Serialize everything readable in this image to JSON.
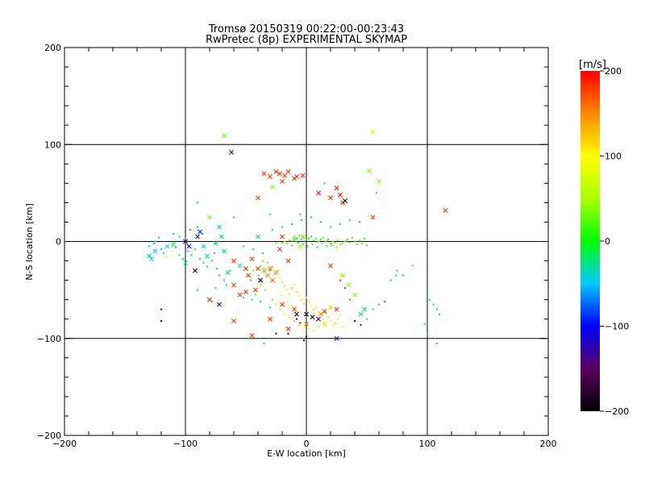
{
  "chart_data": {
    "type": "scatter",
    "title": "Tromsø 20150319 00:22:00-00:23:43",
    "subtitle": "RwPretec (8p) EXPERIMENTAL SKYMAP",
    "xlabel": "E-W location [km]",
    "ylabel": "N-S location [km]",
    "xlim": [
      -200,
      200
    ],
    "ylim": [
      -200,
      200
    ],
    "x_ticks": [
      "-200",
      "-100",
      "0",
      "100",
      "200"
    ],
    "y_ticks": [
      "-200",
      "-100",
      "0",
      "100",
      "200"
    ],
    "grid": true,
    "colorbar": {
      "label": "[m/s]",
      "range": [
        -200,
        200
      ],
      "ticks": [
        "200",
        "100",
        "0",
        "-100",
        "-200"
      ]
    },
    "crosses": [
      [
        -62,
        92,
        -140
      ],
      [
        -68,
        109,
        30
      ],
      [
        -35,
        70,
        180
      ],
      [
        -30,
        67,
        180
      ],
      [
        -25,
        72,
        180
      ],
      [
        -22,
        70,
        180
      ],
      [
        -18,
        68,
        180
      ],
      [
        -15,
        72,
        180
      ],
      [
        -10,
        65,
        180
      ],
      [
        -8,
        67,
        180
      ],
      [
        -3,
        68,
        180
      ],
      [
        -28,
        56,
        40
      ],
      [
        -20,
        62,
        180
      ],
      [
        10,
        50,
        190
      ],
      [
        25,
        55,
        190
      ],
      [
        28,
        48,
        190
      ],
      [
        30,
        40,
        190
      ],
      [
        32,
        42,
        -190
      ],
      [
        20,
        45,
        180
      ],
      [
        55,
        113,
        60
      ],
      [
        52,
        73,
        40
      ],
      [
        60,
        62,
        40
      ],
      [
        55,
        25,
        180
      ],
      [
        115,
        32,
        180
      ],
      [
        -40,
        45,
        180
      ],
      [
        -5,
        -5,
        40
      ],
      [
        -10,
        2,
        20
      ],
      [
        -3,
        5,
        30
      ],
      [
        -130,
        -15,
        -40
      ],
      [
        -125,
        -10,
        -40
      ],
      [
        -128,
        -18,
        -40
      ],
      [
        -115,
        -5,
        -30
      ],
      [
        -110,
        -3,
        -10
      ],
      [
        -100,
        0,
        -120
      ],
      [
        -97,
        -5,
        -110
      ],
      [
        -90,
        5,
        -120
      ],
      [
        -88,
        10,
        -90
      ],
      [
        -85,
        -5,
        -40
      ],
      [
        -82,
        -15,
        -40
      ],
      [
        -75,
        -2,
        -20
      ],
      [
        -72,
        15,
        -20
      ],
      [
        -80,
        25,
        40
      ],
      [
        -70,
        5,
        -30
      ],
      [
        -68,
        -10,
        -30
      ],
      [
        -60,
        -20,
        180
      ],
      [
        -55,
        -25,
        -30
      ],
      [
        -45,
        -18,
        180
      ],
      [
        -40,
        -28,
        180
      ],
      [
        -35,
        -30,
        150
      ],
      [
        -32,
        -35,
        150
      ],
      [
        -30,
        -28,
        160
      ],
      [
        -28,
        -40,
        160
      ],
      [
        -25,
        -32,
        150
      ],
      [
        -38,
        -40,
        -190
      ],
      [
        -42,
        -50,
        180
      ],
      [
        -50,
        -52,
        180
      ],
      [
        -55,
        -55,
        180
      ],
      [
        -60,
        -45,
        180
      ],
      [
        -48,
        -35,
        180
      ],
      [
        -20,
        -65,
        180
      ],
      [
        -10,
        -70,
        180
      ],
      [
        0,
        -75,
        -190
      ],
      [
        5,
        -78,
        -190
      ],
      [
        10,
        -80,
        -160
      ],
      [
        15,
        -72,
        180
      ],
      [
        20,
        -68,
        120
      ],
      [
        25,
        -70,
        180
      ],
      [
        15,
        -85,
        120
      ],
      [
        35,
        -45,
        40
      ],
      [
        40,
        -55,
        40
      ],
      [
        45,
        -75,
        -30
      ],
      [
        48,
        -70,
        -20
      ],
      [
        -15,
        -90,
        180
      ],
      [
        -30,
        -80,
        180
      ],
      [
        -45,
        -97,
        180
      ],
      [
        -60,
        -82,
        180
      ],
      [
        -72,
        -65,
        -120
      ],
      [
        -80,
        -60,
        180
      ],
      [
        -92,
        -30,
        -190
      ],
      [
        -100,
        -22,
        -20
      ],
      [
        25,
        -100,
        -140
      ],
      [
        30,
        -35,
        40
      ],
      [
        20,
        -25,
        180
      ],
      [
        -22,
        -8,
        180
      ],
      [
        -50,
        -28,
        180
      ],
      [
        -65,
        -32,
        -30
      ],
      [
        -8,
        -75,
        -200
      ],
      [
        12,
        -75,
        150
      ],
      [
        0,
        -85,
        150
      ],
      [
        -40,
        5,
        -30
      ],
      [
        -20,
        5,
        180
      ],
      [
        -15,
        -20,
        180
      ]
    ],
    "dots": [
      [
        -10,
        5,
        10
      ],
      [
        -8,
        3,
        0
      ],
      [
        -6,
        6,
        20
      ],
      [
        -4,
        2,
        15
      ],
      [
        -2,
        4,
        10
      ],
      [
        0,
        2,
        5
      ],
      [
        2,
        3,
        0
      ],
      [
        4,
        5,
        20
      ],
      [
        6,
        1,
        10
      ],
      [
        8,
        3,
        25
      ],
      [
        10,
        0,
        30
      ],
      [
        12,
        2,
        15
      ],
      [
        14,
        4,
        20
      ],
      [
        16,
        0,
        10
      ],
      [
        18,
        2,
        5
      ],
      [
        20,
        -2,
        15
      ],
      [
        22,
        0,
        25
      ],
      [
        24,
        -1,
        20
      ],
      [
        26,
        1,
        30
      ],
      [
        28,
        -3,
        35
      ],
      [
        30,
        -2,
        40
      ],
      [
        32,
        0,
        20
      ],
      [
        34,
        2,
        15
      ],
      [
        36,
        -1,
        25
      ],
      [
        38,
        4,
        30
      ],
      [
        40,
        0,
        10
      ],
      [
        42,
        -3,
        20
      ],
      [
        44,
        1,
        30
      ],
      [
        46,
        -2,
        25
      ],
      [
        48,
        3,
        15
      ],
      [
        50,
        -4,
        10
      ],
      [
        -14,
        1,
        20
      ],
      [
        -16,
        -2,
        30
      ],
      [
        -18,
        0,
        40
      ],
      [
        -20,
        -1,
        10
      ],
      [
        -12,
        -4,
        5
      ],
      [
        -7,
        -1,
        0
      ],
      [
        -3,
        -3,
        -10
      ],
      [
        1,
        -5,
        5
      ],
      [
        5,
        -3,
        10
      ],
      [
        9,
        -6,
        -20
      ],
      [
        13,
        -2,
        20
      ],
      [
        17,
        -5,
        30
      ],
      [
        21,
        -4,
        10
      ],
      [
        25,
        -6,
        40
      ],
      [
        -25,
        -2,
        30
      ],
      [
        -36,
        -20,
        40
      ],
      [
        -38,
        -25,
        30
      ],
      [
        -34,
        -28,
        100
      ],
      [
        -32,
        -22,
        120
      ],
      [
        -30,
        -30,
        150
      ],
      [
        -28,
        -26,
        130
      ],
      [
        -26,
        -34,
        110
      ],
      [
        -24,
        -30,
        90
      ],
      [
        -22,
        -38,
        80
      ],
      [
        -20,
        -42,
        70
      ],
      [
        -18,
        -46,
        60
      ],
      [
        -16,
        -50,
        100
      ],
      [
        -14,
        -54,
        110
      ],
      [
        -12,
        -48,
        120
      ],
      [
        -10,
        -44,
        80
      ],
      [
        -8,
        -52,
        60
      ],
      [
        -6,
        -56,
        100
      ],
      [
        -4,
        -60,
        110
      ],
      [
        -2,
        -64,
        120
      ],
      [
        0,
        -58,
        90
      ],
      [
        2,
        -62,
        80
      ],
      [
        4,
        -66,
        100
      ],
      [
        6,
        -70,
        120
      ],
      [
        8,
        -68,
        110
      ],
      [
        10,
        -72,
        90
      ],
      [
        12,
        -76,
        100
      ],
      [
        14,
        -80,
        80
      ],
      [
        16,
        -74,
        60
      ],
      [
        18,
        -78,
        110
      ],
      [
        20,
        -82,
        100
      ],
      [
        22,
        -86,
        90
      ],
      [
        24,
        -84,
        120
      ],
      [
        26,
        -80,
        110
      ],
      [
        28,
        -76,
        100
      ],
      [
        30,
        -88,
        80
      ],
      [
        -28,
        -60,
        40
      ],
      [
        -25,
        -65,
        50
      ],
      [
        -22,
        -70,
        60
      ],
      [
        -18,
        -75,
        90
      ],
      [
        -14,
        -78,
        100
      ],
      [
        -10,
        -82,
        120
      ],
      [
        -6,
        -86,
        110
      ],
      [
        -2,
        -88,
        100
      ],
      [
        2,
        -90,
        90
      ],
      [
        6,
        -92,
        80
      ],
      [
        10,
        -88,
        70
      ],
      [
        -34,
        -50,
        40
      ],
      [
        -38,
        -45,
        30
      ],
      [
        -40,
        -35,
        20
      ],
      [
        -44,
        -30,
        30
      ],
      [
        -46,
        -40,
        -20
      ],
      [
        -42,
        -55,
        30
      ],
      [
        -20,
        -55,
        90
      ],
      [
        -16,
        -62,
        100
      ],
      [
        -12,
        -66,
        80
      ],
      [
        -8,
        -72,
        90
      ],
      [
        -130,
        -5,
        -20
      ],
      [
        -125,
        0,
        -30
      ],
      [
        -120,
        -8,
        -40
      ],
      [
        -118,
        -12,
        -20
      ],
      [
        -115,
        -16,
        90
      ],
      [
        -112,
        -10,
        100
      ],
      [
        -108,
        -6,
        -40
      ],
      [
        -105,
        -14,
        -10
      ],
      [
        -102,
        -18,
        -30
      ],
      [
        -98,
        -10,
        -20
      ],
      [
        -95,
        -14,
        -40
      ],
      [
        -92,
        -8,
        -30
      ],
      [
        -88,
        -18,
        -20
      ],
      [
        -85,
        -22,
        -40
      ],
      [
        -82,
        -26,
        -30
      ],
      [
        -78,
        -20,
        -10
      ],
      [
        -76,
        -12,
        -20
      ],
      [
        -74,
        -28,
        -40
      ],
      [
        -72,
        -35,
        -30
      ],
      [
        -68,
        -40,
        -20
      ],
      [
        -66,
        -45,
        -10
      ],
      [
        -63,
        -30,
        -20
      ],
      [
        -110,
        8,
        -30
      ],
      [
        -105,
        5,
        -40
      ],
      [
        -100,
        3,
        -50
      ],
      [
        -96,
        12,
        -60
      ],
      [
        -90,
        15,
        -40
      ],
      [
        -86,
        8,
        -30
      ],
      [
        -122,
        4,
        -40
      ],
      [
        -126,
        -2,
        -20
      ],
      [
        -90,
        40,
        -30
      ],
      [
        -120,
        -70,
        -120
      ],
      [
        -120,
        -82,
        -100
      ],
      [
        -78,
        -62,
        -20
      ],
      [
        -52,
        -58,
        -30
      ],
      [
        -45,
        -60,
        -20
      ],
      [
        -38,
        -62,
        -10
      ],
      [
        -30,
        -68,
        -20
      ],
      [
        -8,
        -80,
        -130
      ],
      [
        -5,
        -84,
        -140
      ],
      [
        40,
        -82,
        -120
      ],
      [
        45,
        -86,
        -150
      ],
      [
        50,
        -80,
        -10
      ],
      [
        55,
        -70,
        -20
      ],
      [
        60,
        -65,
        -30
      ],
      [
        65,
        -62,
        180
      ],
      [
        70,
        -40,
        -30
      ],
      [
        75,
        -30,
        -20
      ],
      [
        80,
        -35,
        -30
      ],
      [
        100,
        -55,
        -40
      ],
      [
        102,
        -60,
        -30
      ],
      [
        105,
        -65,
        -20
      ],
      [
        108,
        -70,
        -30
      ],
      [
        110,
        -75,
        -40
      ],
      [
        98,
        -85,
        -20
      ],
      [
        100,
        -95,
        10
      ],
      [
        108,
        -105,
        -20
      ],
      [
        -52,
        -5,
        -20
      ],
      [
        -44,
        -8,
        -30
      ],
      [
        -36,
        -12,
        -40
      ],
      [
        -28,
        12,
        -30
      ],
      [
        -20,
        15,
        -20
      ],
      [
        -12,
        18,
        -30
      ],
      [
        -4,
        22,
        -20
      ],
      [
        4,
        25,
        -30
      ],
      [
        12,
        20,
        -40
      ],
      [
        20,
        15,
        -30
      ],
      [
        28,
        18,
        -20
      ],
      [
        36,
        22,
        -30
      ],
      [
        44,
        20,
        -40
      ],
      [
        -30,
        28,
        -30
      ],
      [
        -5,
        28,
        -20
      ],
      [
        15,
        60,
        -30
      ],
      [
        58,
        50,
        -40
      ],
      [
        74,
        -35,
        -20
      ],
      [
        88,
        -25,
        -30
      ],
      [
        -60,
        25,
        -20
      ],
      [
        -90,
        -50,
        -30
      ],
      [
        -75,
        -48,
        -20
      ],
      [
        -2,
        -102,
        -110
      ],
      [
        -35,
        -105,
        -30
      ],
      [
        28,
        -40,
        180
      ],
      [
        32,
        -48,
        190
      ],
      [
        36,
        -60,
        170
      ],
      [
        -15,
        -95,
        -190
      ],
      [
        -25,
        -95,
        -180
      ],
      [
        -48,
        -100,
        -30
      ],
      [
        0,
        -98,
        -190
      ]
    ]
  }
}
